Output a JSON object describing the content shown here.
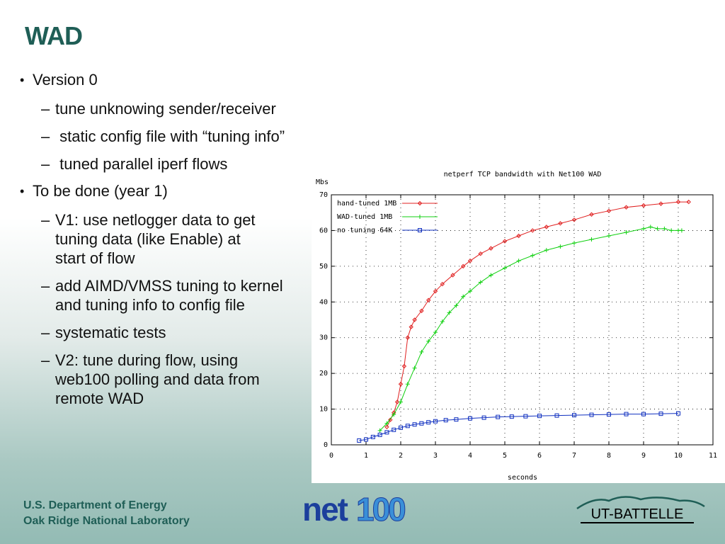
{
  "slide": {
    "title": "WAD",
    "bullets": [
      {
        "text": "Version 0",
        "sub": [
          "tune unknowing sender/receiver",
          " static config file with “tuning info”",
          " tuned parallel iperf flows"
        ]
      },
      {
        "text": "To be done (year 1)",
        "sub": [
          "V1: use netlogger data to get tuning data (like Enable) at start of flow",
          "add AIMD/VMSS tuning to kernel and tuning info to config file",
          "systematic tests",
          "V2: tune during flow, using web100 polling and data from remote WAD"
        ]
      }
    ],
    "bullet_glyph": "•",
    "dash_glyph": "–"
  },
  "footer": {
    "org_line1": "U.S. Department of Energy",
    "org_line2": "Oak Ridge National Laboratory",
    "logo_net": "net",
    "logo_100": "100",
    "logo_ut": "UT-BATTELLE"
  },
  "chart_data": {
    "type": "line",
    "title": "netperf TCP bandwidth with Net100 WAD",
    "xlabel": "seconds",
    "ylabel": "Mbs",
    "xlim": [
      0,
      11
    ],
    "ylim": [
      0,
      70
    ],
    "xticks": [
      0,
      1,
      2,
      3,
      4,
      5,
      6,
      7,
      8,
      9,
      10,
      11
    ],
    "yticks": [
      0,
      10,
      20,
      30,
      40,
      50,
      60,
      70
    ],
    "grid": true,
    "legend_position": "top-left",
    "series": [
      {
        "name": "hand-tuned 1MB",
        "color": "#e02020",
        "marker": "diamond",
        "x": [
          1.6,
          1.7,
          1.8,
          1.9,
          2.0,
          2.1,
          2.2,
          2.3,
          2.4,
          2.6,
          2.8,
          3.0,
          3.2,
          3.5,
          3.8,
          4.0,
          4.3,
          4.6,
          5.0,
          5.4,
          5.8,
          6.2,
          6.6,
          7.0,
          7.5,
          8.0,
          8.5,
          9.0,
          9.5,
          10.0,
          10.3
        ],
        "y": [
          5,
          7,
          9,
          12,
          17,
          22,
          30,
          33,
          35,
          37.5,
          40.5,
          43,
          45,
          47.5,
          50,
          51.5,
          53.5,
          55,
          57,
          58.5,
          60,
          61,
          62,
          63,
          64.5,
          65.5,
          66.5,
          67,
          67.5,
          68,
          68
        ]
      },
      {
        "name": "WAD-tuned 1MB",
        "color": "#10d010",
        "marker": "plus",
        "x": [
          1.4,
          1.6,
          1.8,
          2.0,
          2.2,
          2.4,
          2.6,
          2.8,
          3.0,
          3.2,
          3.4,
          3.6,
          3.8,
          4.0,
          4.3,
          4.6,
          5.0,
          5.4,
          5.8,
          6.2,
          6.6,
          7.0,
          7.5,
          8.0,
          8.5,
          9.0,
          9.2,
          9.4,
          9.6,
          9.8,
          10.0,
          10.1
        ],
        "y": [
          4,
          6,
          8.5,
          12,
          17,
          21.5,
          26,
          29,
          31.5,
          34.5,
          37,
          39,
          41.5,
          43,
          45.5,
          47.5,
          49.5,
          51.5,
          53,
          54.5,
          55.5,
          56.5,
          57.5,
          58.5,
          59.5,
          60.5,
          61,
          60.5,
          60.5,
          60,
          60,
          60
        ]
      },
      {
        "name": "no tuning 64K",
        "color": "#1030c0",
        "marker": "square",
        "x": [
          0.8,
          1.0,
          1.2,
          1.4,
          1.6,
          1.8,
          2.0,
          2.2,
          2.4,
          2.6,
          2.8,
          3.0,
          3.3,
          3.6,
          4.0,
          4.4,
          4.8,
          5.2,
          5.6,
          6.0,
          6.5,
          7.0,
          7.5,
          8.0,
          8.5,
          9.0,
          9.5,
          10.0
        ],
        "y": [
          1.2,
          1.5,
          2.2,
          2.8,
          3.5,
          4.2,
          4.8,
          5.3,
          5.7,
          6.0,
          6.3,
          6.6,
          6.9,
          7.1,
          7.4,
          7.6,
          7.8,
          7.9,
          8.0,
          8.1,
          8.2,
          8.3,
          8.4,
          8.5,
          8.6,
          8.6,
          8.7,
          8.8
        ]
      }
    ]
  }
}
